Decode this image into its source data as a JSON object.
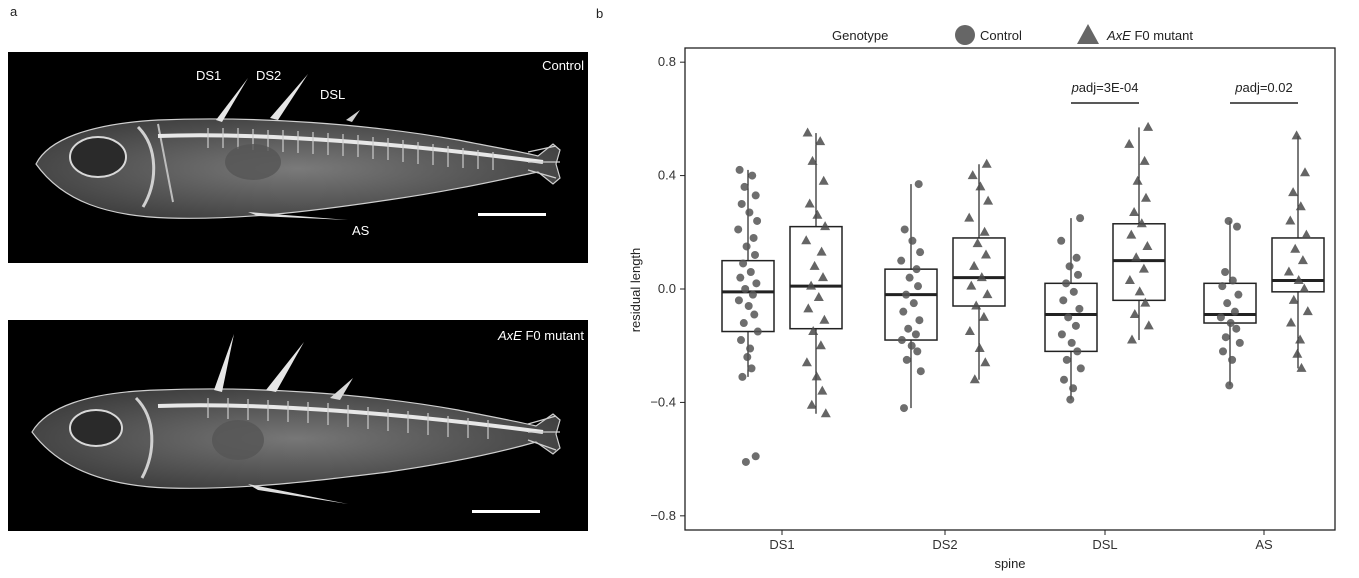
{
  "panels": {
    "a": "a",
    "b": "b"
  },
  "xray_top": {
    "tag": "Control",
    "spine_labels": {
      "ds1": "DS1",
      "ds2": "DS2",
      "dsl": "DSL",
      "as": "AS"
    }
  },
  "xray_bottom": {
    "tag_italic": "AxE",
    "tag_rest": " F0 mutant"
  },
  "colors": {
    "control": "#555555",
    "mutant": "#4a4a4a",
    "xray_bg": "#000000",
    "bone": "#d9d9d9"
  },
  "chart_data": {
    "type": "boxplot",
    "legend": {
      "title": "Genotype",
      "placement": "top",
      "entries": [
        {
          "label": "Control",
          "marker": "circle"
        },
        {
          "label_italic": "AxE",
          "label_rest": " F0 mutant",
          "marker": "triangle"
        }
      ]
    },
    "xlabel": "spine",
    "ylabel": "residual length",
    "ylim": [
      -0.85,
      0.85
    ],
    "yticks": [
      0.8,
      0.4,
      0.0,
      -0.4,
      -0.8
    ],
    "ytick_labels": [
      "0.8",
      "0.4",
      "0.0",
      "−0.4",
      "−0.8"
    ],
    "categories": [
      "DS1",
      "DS2",
      "DSL",
      "AS"
    ],
    "groups": [
      {
        "category": "DS1",
        "control": {
          "q1": -0.15,
          "median": -0.01,
          "q3": 0.1,
          "whisker_low": -0.31,
          "whisker_high": 0.42,
          "points": [
            0.42,
            0.4,
            0.36,
            0.33,
            0.3,
            0.27,
            0.24,
            0.21,
            0.18,
            0.15,
            0.12,
            0.09,
            0.06,
            0.04,
            0.02,
            0.0,
            -0.02,
            -0.04,
            -0.06,
            -0.09,
            -0.12,
            -0.15,
            -0.18,
            -0.21,
            -0.24,
            -0.28,
            -0.31,
            -0.59,
            -0.61
          ]
        },
        "mutant": {
          "q1": -0.14,
          "median": 0.01,
          "q3": 0.22,
          "whisker_low": -0.44,
          "whisker_high": 0.55,
          "points": [
            0.55,
            0.52,
            0.45,
            0.38,
            0.3,
            0.26,
            0.22,
            0.17,
            0.13,
            0.08,
            0.04,
            0.01,
            -0.03,
            -0.07,
            -0.11,
            -0.15,
            -0.2,
            -0.26,
            -0.31,
            -0.36,
            -0.41,
            -0.44
          ]
        }
      },
      {
        "category": "DS2",
        "control": {
          "q1": -0.18,
          "median": -0.02,
          "q3": 0.07,
          "whisker_low": -0.42,
          "whisker_high": 0.37,
          "points": [
            0.37,
            0.21,
            0.17,
            0.13,
            0.1,
            0.07,
            0.04,
            0.01,
            -0.02,
            -0.05,
            -0.08,
            -0.11,
            -0.14,
            -0.16,
            -0.18,
            -0.2,
            -0.22,
            -0.25,
            -0.29,
            -0.42
          ]
        },
        "mutant": {
          "q1": -0.06,
          "median": 0.04,
          "q3": 0.18,
          "whisker_low": -0.32,
          "whisker_high": 0.44,
          "points": [
            0.44,
            0.4,
            0.36,
            0.31,
            0.25,
            0.2,
            0.16,
            0.12,
            0.08,
            0.04,
            0.01,
            -0.02,
            -0.06,
            -0.1,
            -0.15,
            -0.21,
            -0.26,
            -0.32
          ]
        }
      },
      {
        "category": "DSL",
        "control": {
          "q1": -0.22,
          "median": -0.09,
          "q3": 0.02,
          "whisker_low": -0.39,
          "whisker_high": 0.25,
          "points": [
            0.25,
            0.17,
            0.11,
            0.08,
            0.05,
            0.02,
            -0.01,
            -0.04,
            -0.07,
            -0.1,
            -0.13,
            -0.16,
            -0.19,
            -0.22,
            -0.25,
            -0.28,
            -0.32,
            -0.35,
            -0.39
          ]
        },
        "mutant": {
          "q1": -0.04,
          "median": 0.1,
          "q3": 0.23,
          "whisker_low": -0.18,
          "whisker_high": 0.57,
          "points": [
            0.57,
            0.51,
            0.45,
            0.38,
            0.32,
            0.27,
            0.23,
            0.19,
            0.15,
            0.11,
            0.07,
            0.03,
            -0.01,
            -0.05,
            -0.09,
            -0.13,
            -0.18
          ]
        },
        "annotation": {
          "p_italic": "p",
          "p_rest": "adj=3E-04"
        }
      },
      {
        "category": "AS",
        "control": {
          "q1": -0.12,
          "median": -0.09,
          "q3": 0.02,
          "whisker_low": -0.34,
          "whisker_high": 0.24,
          "points": [
            0.24,
            0.22,
            0.06,
            0.03,
            0.01,
            -0.02,
            -0.05,
            -0.08,
            -0.1,
            -0.12,
            -0.14,
            -0.17,
            -0.19,
            -0.22,
            -0.25,
            -0.34
          ]
        },
        "mutant": {
          "q1": -0.01,
          "median": 0.03,
          "q3": 0.18,
          "whisker_low": -0.28,
          "whisker_high": 0.54,
          "points": [
            0.54,
            0.41,
            0.34,
            0.29,
            0.24,
            0.19,
            0.14,
            0.1,
            0.06,
            0.03,
            0.0,
            -0.04,
            -0.08,
            -0.12,
            -0.18,
            -0.23,
            -0.28
          ]
        },
        "annotation": {
          "p_italic": "p",
          "p_rest": "adj=0.02"
        }
      }
    ]
  }
}
